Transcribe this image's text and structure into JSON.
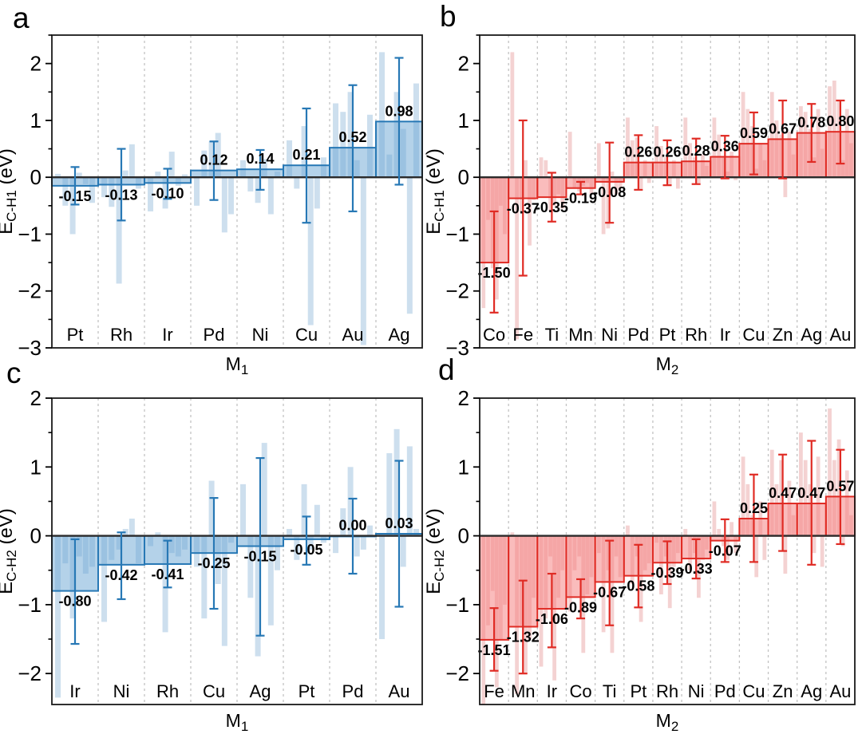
{
  "figure": {
    "background": "#ffffff",
    "panel_letters": [
      "a",
      "b",
      "c",
      "d"
    ]
  },
  "chart_data": [
    {
      "panel": "a",
      "type": "bar",
      "title": "",
      "ylabel": "E_C-H1 (eV)",
      "ylabel_parts": {
        "base": "E",
        "sub": "C-H1",
        "rest": " (eV)"
      },
      "xlabel": "M1",
      "xlabel_parts": {
        "base": "M",
        "sub": "1"
      },
      "ylim": [
        -3,
        2.5
      ],
      "ytick_major": 1,
      "ytick_minor": 0.5,
      "grid": "dashed vertical separators between categories",
      "legend": "none",
      "categories": [
        "Pt",
        "Rh",
        "Ir",
        "Pd",
        "Ni",
        "Cu",
        "Au",
        "Ag"
      ],
      "values": [
        -0.15,
        -0.13,
        -0.1,
        0.12,
        0.14,
        0.21,
        0.52,
        0.98
      ],
      "value_labels": [
        "-0.15",
        "-0.13",
        "-0.10",
        "0.12",
        "0.14",
        "0.21",
        "0.52",
        "0.98"
      ],
      "error_low": [
        -0.48,
        -0.76,
        -0.38,
        -0.4,
        -0.22,
        -0.8,
        -0.6,
        -0.13
      ],
      "error_high": [
        0.18,
        0.5,
        0.15,
        0.63,
        0.48,
        1.21,
        1.62,
        2.1
      ],
      "background_bars": [
        [
          0.06,
          -0.5,
          -1.0,
          0.08,
          -0.12,
          -0.45
        ],
        [
          -0.35,
          -0.52,
          -1.87,
          0.12,
          0.58,
          -0.2
        ],
        [
          -0.6,
          0.1,
          -0.55,
          0.45,
          -0.15,
          0.05
        ],
        [
          -0.5,
          0.47,
          0.63,
          0.78,
          -0.97,
          -0.65
        ],
        [
          0.3,
          -0.25,
          -0.45,
          0.32,
          -0.65,
          0.1
        ],
        [
          0.65,
          -0.2,
          0.9,
          -2.6,
          -0.55,
          0.35
        ],
        [
          1.3,
          1.15,
          1.5,
          0.3,
          -2.95,
          1.1
        ],
        [
          2.2,
          0.4,
          1.5,
          0.85,
          -2.4,
          1.65
        ]
      ],
      "colors": {
        "bar_fill": "rgba(106,166,211,0.50)",
        "bar_edge": "#2778b5",
        "error": "#2778b5",
        "background_bar": "#cddfee"
      }
    },
    {
      "panel": "b",
      "type": "bar",
      "title": "",
      "ylabel": "E_C-H1 (eV)",
      "ylabel_parts": {
        "base": "E",
        "sub": "C-H1",
        "rest": " (eV)"
      },
      "xlabel": "M2",
      "xlabel_parts": {
        "base": "M",
        "sub": "2"
      },
      "ylim": [
        -3,
        2.5
      ],
      "ytick_major": 1,
      "ytick_minor": 0.5,
      "grid": "dashed vertical separators between categories",
      "legend": "none",
      "categories": [
        "Co",
        "Fe",
        "Ti",
        "Mn",
        "Ni",
        "Pd",
        "Pt",
        "Rh",
        "Ir",
        "Cu",
        "Zn",
        "Ag",
        "Au"
      ],
      "values": [
        -1.5,
        -0.37,
        -0.35,
        -0.19,
        -0.08,
        0.26,
        0.26,
        0.28,
        0.36,
        0.59,
        0.67,
        0.78,
        0.8
      ],
      "value_labels": [
        "-1.50",
        "-0.37",
        "-0.35",
        "-0.19",
        "-0.08",
        "0.26",
        "0.26",
        "0.28",
        "0.36",
        "0.59",
        "0.67",
        "0.78",
        "0.80"
      ],
      "error_low": [
        -2.38,
        -1.73,
        -0.78,
        -0.3,
        -0.8,
        -0.22,
        -0.14,
        -0.12,
        -0.02,
        0.05,
        -0.02,
        0.27,
        0.24
      ],
      "error_high": [
        -0.6,
        1.0,
        0.08,
        -0.08,
        0.61,
        0.74,
        0.65,
        0.68,
        0.73,
        1.14,
        1.35,
        1.29,
        1.35
      ],
      "background_bars": [
        [
          -2.3,
          -0.75,
          -1.6,
          -2.15,
          -0.5,
          -1.0
        ],
        [
          2.2,
          -2.85,
          -0.6,
          0.3,
          -1.2,
          -0.4
        ],
        [
          0.35,
          0.3,
          -0.6,
          -0.5,
          -0.3,
          -0.55
        ],
        [
          0.8,
          -0.2,
          -0.25,
          -0.15,
          -0.1,
          -0.3
        ],
        [
          0.6,
          -1.0,
          -0.9,
          0.1,
          -0.3,
          -0.2
        ],
        [
          1.05,
          0.65,
          0.7,
          -0.2,
          0.3,
          -0.1
        ],
        [
          0.9,
          0.55,
          0.35,
          -0.15,
          0.3,
          -0.2
        ],
        [
          1.05,
          0.6,
          0.35,
          -0.1,
          0.4,
          0.2
        ],
        [
          1.05,
          0.75,
          0.35,
          0.1,
          0.45,
          -0.05
        ],
        [
          1.5,
          1.2,
          0.9,
          0.15,
          0.6,
          0.3
        ],
        [
          1.5,
          1.0,
          0.75,
          -0.35,
          0.8,
          0.4
        ],
        [
          1.25,
          1.15,
          0.85,
          0.35,
          1.2,
          0.5
        ],
        [
          1.6,
          1.7,
          1.35,
          0.3,
          1.2,
          0.6
        ]
      ],
      "colors": {
        "bar_fill": "rgba(246,122,122,0.50)",
        "bar_edge": "#e02b24",
        "error": "#e02b24",
        "background_bar": "#f4d2d2"
      }
    },
    {
      "panel": "c",
      "type": "bar",
      "title": "",
      "ylabel": "E_C-H2 (eV)",
      "ylabel_parts": {
        "base": "E",
        "sub": "C-H2",
        "rest": " (eV)"
      },
      "xlabel": "M1",
      "xlabel_parts": {
        "base": "M",
        "sub": "1"
      },
      "ylim": [
        -2.45,
        2
      ],
      "ytick_major": 1,
      "ytick_minor": 0.5,
      "grid": "dashed vertical separators between categories",
      "legend": "none",
      "categories": [
        "Ir",
        "Ni",
        "Rh",
        "Cu",
        "Ag",
        "Pt",
        "Pd",
        "Au"
      ],
      "values": [
        -0.8,
        -0.42,
        -0.41,
        -0.25,
        -0.15,
        -0.05,
        0.0,
        0.03
      ],
      "value_labels": [
        "-0.80",
        "-0.42",
        "-0.41",
        "-0.25",
        "-0.15",
        "-0.05",
        "0.00",
        "0.03"
      ],
      "error_low": [
        -1.57,
        -0.92,
        -0.75,
        -1.06,
        -1.45,
        -0.42,
        -0.55,
        -1.03
      ],
      "error_high": [
        -0.05,
        0.05,
        -0.07,
        0.55,
        1.13,
        0.28,
        0.54,
        1.09
      ],
      "background_bars": [
        [
          -2.35,
          -0.4,
          -1.2,
          -0.3,
          -0.55,
          -0.45
        ],
        [
          -1.25,
          -0.35,
          -0.2,
          0.1,
          0.25,
          -0.4
        ],
        [
          -0.15,
          0.05,
          -1.4,
          -0.25,
          -0.3,
          -0.2
        ],
        [
          -0.45,
          -1.2,
          0.8,
          -0.7,
          -1.6,
          -0.1
        ],
        [
          0.75,
          -0.9,
          -1.75,
          1.35,
          -1.3,
          -0.5
        ],
        [
          0.1,
          -0.35,
          0.75,
          -0.2,
          0.45,
          -0.1
        ],
        [
          -0.25,
          0.4,
          1.0,
          -0.3,
          -0.2,
          0.15
        ],
        [
          -1.5,
          1.2,
          1.55,
          -0.45,
          1.3,
          0.1
        ]
      ],
      "colors": {
        "bar_fill": "rgba(106,166,211,0.50)",
        "bar_edge": "#2778b5",
        "error": "#2778b5",
        "background_bar": "#cddfee"
      }
    },
    {
      "panel": "d",
      "type": "bar",
      "title": "",
      "ylabel": "E_C-H2 (eV)",
      "ylabel_parts": {
        "base": "E",
        "sub": "C-H2",
        "rest": " (eV)"
      },
      "xlabel": "M2",
      "xlabel_parts": {
        "base": "M",
        "sub": "2"
      },
      "ylim": [
        -2.45,
        2
      ],
      "ytick_major": 1,
      "ytick_minor": 0.5,
      "grid": "dashed vertical separators between categories",
      "legend": "none",
      "categories": [
        "Fe",
        "Mn",
        "Ir",
        "Co",
        "Ti",
        "Pt",
        "Rh",
        "Ni",
        "Pd",
        "Cu",
        "Zn",
        "Ag",
        "Au"
      ],
      "values": [
        -1.51,
        -1.32,
        -1.06,
        -0.89,
        -0.67,
        -0.58,
        -0.39,
        -0.33,
        -0.07,
        0.25,
        0.47,
        0.47,
        0.57
      ],
      "value_labels": [
        "-1.51",
        "-1.32",
        "-1.06",
        "-0.89",
        "-0.67",
        "-0.58",
        "-0.39",
        "-0.33",
        "-0.07",
        "0.25",
        "0.47",
        "0.47",
        "0.57"
      ],
      "error_low": [
        -1.96,
        -2.0,
        -1.62,
        -1.2,
        -1.3,
        -1.04,
        -0.7,
        -0.62,
        -0.38,
        -0.38,
        -0.22,
        -0.42,
        -0.12
      ],
      "error_high": [
        -1.05,
        -0.65,
        -0.55,
        -0.63,
        -0.07,
        -0.13,
        -0.08,
        -0.05,
        0.24,
        0.89,
        1.18,
        1.38,
        1.25
      ],
      "background_bars": [
        [
          -2.45,
          -1.3,
          -0.8,
          -2.2,
          -1.5,
          -1.0
        ],
        [
          0.05,
          -2.3,
          -1.3,
          -2.0,
          -1.5,
          -0.9
        ],
        [
          -1.9,
          -1.2,
          -0.3,
          -2.1,
          -0.9,
          -0.5
        ],
        [
          -1.1,
          -0.5,
          -0.3,
          -1.7,
          -0.85,
          -0.6
        ],
        [
          -0.25,
          -1.4,
          -0.5,
          -1.7,
          -0.3,
          -0.6
        ],
        [
          0.15,
          -0.7,
          -0.3,
          -1.25,
          -0.5,
          -0.4
        ],
        [
          -0.1,
          -0.85,
          -0.3,
          -1.05,
          -0.45,
          -0.25
        ],
        [
          0.1,
          -0.5,
          -0.25,
          -0.9,
          -0.35,
          -0.2
        ],
        [
          0.5,
          0.1,
          -0.15,
          -0.35,
          0.2,
          -0.25
        ],
        [
          1.15,
          0.75,
          0.3,
          -0.6,
          0.5,
          -0.35
        ],
        [
          1.25,
          0.75,
          1.1,
          -0.55,
          0.8,
          0.3
        ],
        [
          1.5,
          1.1,
          0.75,
          -0.25,
          1.15,
          -0.45
        ],
        [
          1.85,
          1.1,
          1.4,
          -0.15,
          0.95,
          0.3
        ]
      ],
      "colors": {
        "bar_fill": "rgba(246,122,122,0.50)",
        "bar_edge": "#e02b24",
        "error": "#e02b24",
        "background_bar": "#f4d2d2"
      }
    }
  ]
}
